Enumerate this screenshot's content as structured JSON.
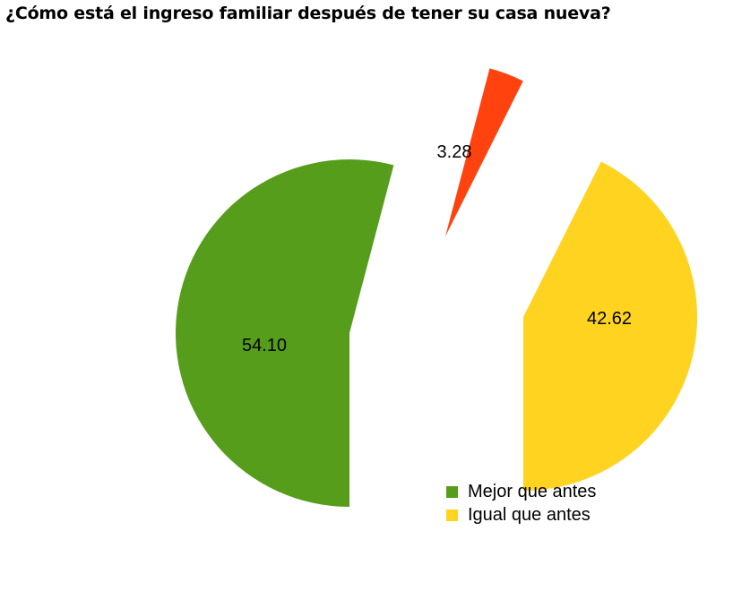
{
  "chart_data": {
    "type": "pie",
    "title": "¿Cómo está el ingreso familiar después de tener su casa nueva?",
    "slices": [
      {
        "name": "Mejor que antes",
        "value": 54.1,
        "label": "54.10",
        "color": "#579D1C"
      },
      {
        "name": "",
        "value": 3.28,
        "label": "3.28",
        "color": "#FF420E"
      },
      {
        "name": "Igual que antes",
        "value": 42.62,
        "label": "42.62",
        "color": "#FFD320"
      }
    ],
    "legend": {
      "position": "bottom-right",
      "entries": [
        {
          "label": "Mejor que antes",
          "color": "#579D1C"
        },
        {
          "label": "Igual que antes",
          "color": "#FFD320"
        }
      ]
    },
    "exploded": true
  }
}
